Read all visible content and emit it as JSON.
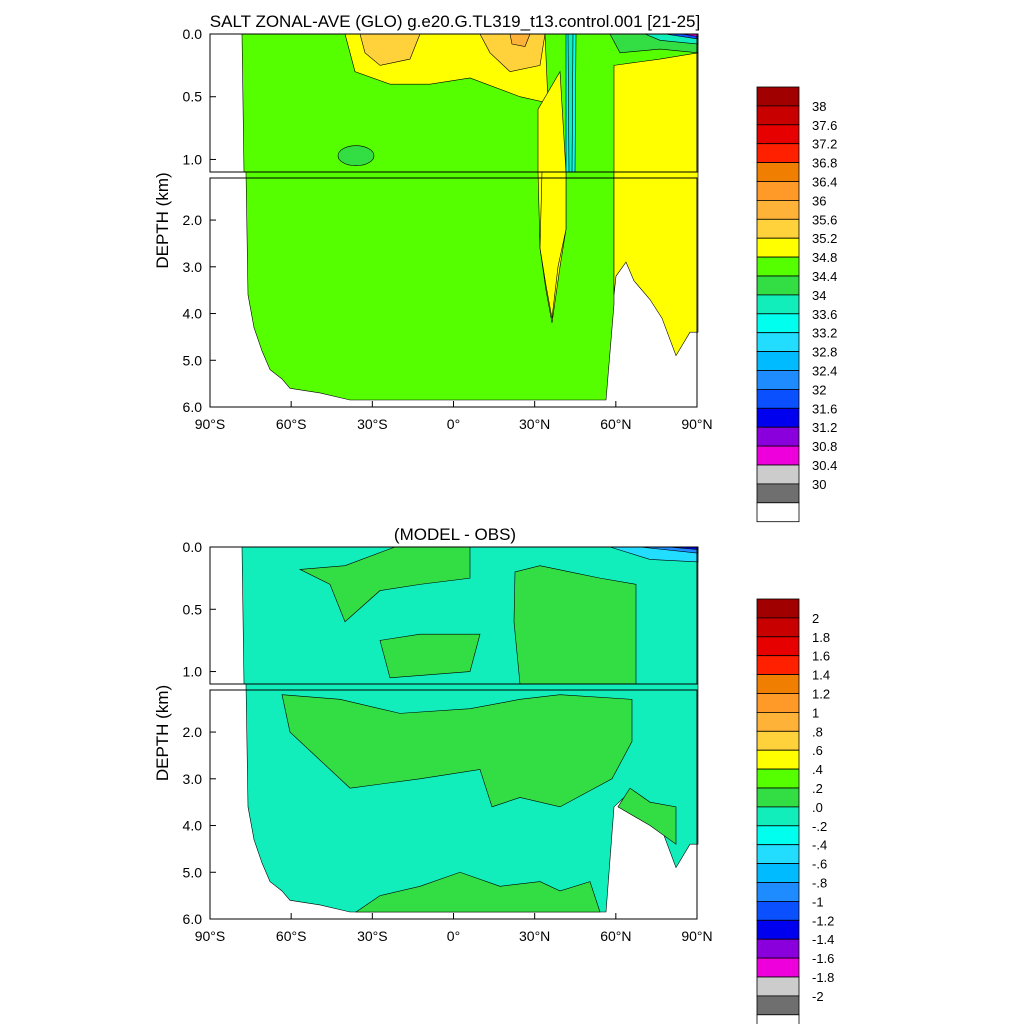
{
  "chart_data": [
    {
      "type": "heatmap",
      "title": "SALT ZONAL-AVE (GLO) g.e20.G.TL319_t13.control.001 [21-25]",
      "xlabel": "",
      "ylabel": "DEPTH (km)",
      "x_ticks": [
        "90°S",
        "60°S",
        "30°S",
        "0°",
        "30°N",
        "60°N",
        "90°N"
      ],
      "x_tick_values": [
        -90,
        -60,
        -30,
        0,
        30,
        60,
        90
      ],
      "y_ticks_upper": [
        "0.0",
        "0.5",
        "1.0"
      ],
      "y_ticks_lower": [
        "2.0",
        "3.0",
        "4.0",
        "5.0",
        "6.0"
      ],
      "y_tick_values_upper": [
        0.0,
        0.5,
        1.0
      ],
      "y_tick_values_lower": [
        2.0,
        3.0,
        4.0,
        5.0,
        6.0
      ],
      "xlim": [
        -90,
        90
      ],
      "ylim": [
        6.0,
        0.0
      ],
      "levels": [
        "38",
        "37.6",
        "37.2",
        "36.8",
        "36.4",
        "36",
        "35.6",
        "35.2",
        "34.8",
        "34.4",
        "34",
        "33.6",
        "33.2",
        "32.8",
        "32.4",
        "32",
        "31.6",
        "31.2",
        "30.8",
        "30.4",
        "30"
      ],
      "colors": [
        "#a00000",
        "#c80000",
        "#e60000",
        "#ff2000",
        "#f07e00",
        "#ff9a28",
        "#ffb238",
        "#ffd23c",
        "#ffff00",
        "#55ff00",
        "#33dd44",
        "#11eebb",
        "#00ffee",
        "#22ddff",
        "#00bbff",
        "#1e8cff",
        "#0a50ff",
        "#0000ee",
        "#8a00dd",
        "#ee00dd",
        "#cccccc",
        "#6f6f6f",
        "#ffffff"
      ]
    },
    {
      "type": "heatmap",
      "title": "(MODEL - OBS)",
      "xlabel": "",
      "ylabel": "DEPTH (km)",
      "x_ticks": [
        "90°S",
        "60°S",
        "30°S",
        "0°",
        "30°N",
        "60°N",
        "90°N"
      ],
      "x_tick_values": [
        -90,
        -60,
        -30,
        0,
        30,
        60,
        90
      ],
      "y_ticks_upper": [
        "0.0",
        "0.5",
        "1.0"
      ],
      "y_ticks_lower": [
        "2.0",
        "3.0",
        "4.0",
        "5.0",
        "6.0"
      ],
      "y_tick_values_upper": [
        0.0,
        0.5,
        1.0
      ],
      "y_tick_values_lower": [
        2.0,
        3.0,
        4.0,
        5.0,
        6.0
      ],
      "xlim": [
        -90,
        90
      ],
      "ylim": [
        6.0,
        0.0
      ],
      "levels": [
        "2",
        "1.8",
        "1.6",
        "1.4",
        "1.2",
        "1",
        ".8",
        ".6",
        ".4",
        ".2",
        ".0",
        "-.2",
        "-.4",
        "-.6",
        "-.8",
        "-1",
        "-1.2",
        "-1.4",
        "-1.6",
        "-1.8",
        "-2"
      ],
      "colors": [
        "#a00000",
        "#c80000",
        "#e60000",
        "#ff2000",
        "#f07e00",
        "#ff9a28",
        "#ffb238",
        "#ffd23c",
        "#ffff00",
        "#55ff00",
        "#33dd44",
        "#11eebb",
        "#00ffee",
        "#22ddff",
        "#00bbff",
        "#1e8cff",
        "#0a50ff",
        "#0000ee",
        "#8a00dd",
        "#ee00dd",
        "#cccccc",
        "#6f6f6f",
        "#ffffff"
      ]
    }
  ]
}
